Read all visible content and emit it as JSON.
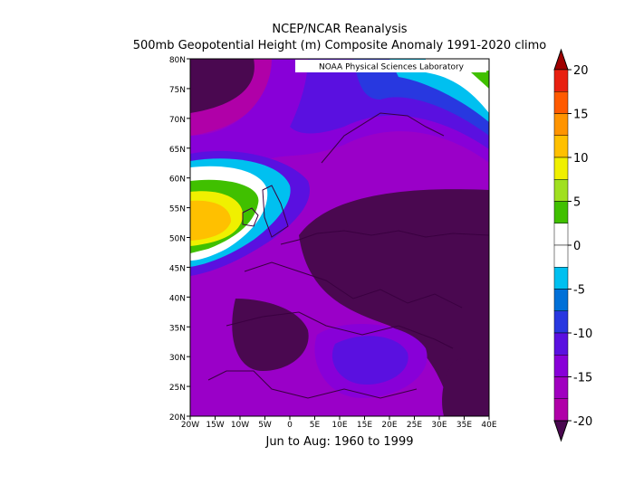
{
  "title": "NCEP/NCAR Reanalysis",
  "subtitle": "500mb Geopotential Height (m) Composite Anomaly 1991-2020 climo",
  "credit": "NOAA Physical Sciences Laboratory",
  "footer": "Jun to Aug: 1960 to 1999",
  "y_ticks": [
    "80N",
    "75N",
    "70N",
    "65N",
    "60N",
    "55N",
    "50N",
    "45N",
    "40N",
    "35N",
    "30N",
    "25N",
    "20N"
  ],
  "x_ticks": [
    "20W",
    "15W",
    "10W",
    "5W",
    "0",
    "5E",
    "10E",
    "15E",
    "20E",
    "25E",
    "30E",
    "35E",
    "40E"
  ],
  "colorbar": {
    "labels": [
      "20",
      "15",
      "10",
      "5",
      "0",
      "-5",
      "-10",
      "-15",
      "-20"
    ],
    "colors": [
      "#a00000",
      "#e82010",
      "#ff5a00",
      "#ff9400",
      "#ffc000",
      "#f0f000",
      "#a0e020",
      "#40c000",
      "#ffffff",
      "#ffffff",
      "#00c0f0",
      "#0070d8",
      "#2838e0",
      "#5a10e0",
      "#8800d8",
      "#a000c0",
      "#b000a8",
      "#4a0850"
    ]
  }
}
